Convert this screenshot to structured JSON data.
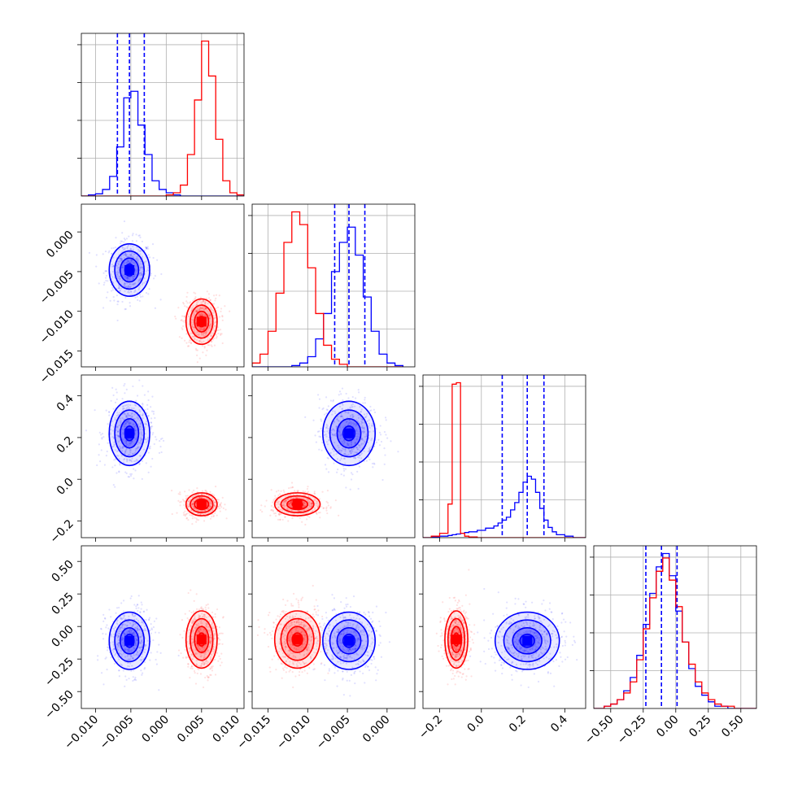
{
  "chart_data": {
    "type": "corner",
    "grid": true,
    "legend": "none",
    "colors": {
      "series_a": "#0000ff",
      "series_b": "#ff0000"
    },
    "parameters": [
      {
        "range": [
          -0.012,
          0.011
        ],
        "ticks": [
          -0.01,
          -0.005,
          0.0,
          0.005,
          0.01
        ],
        "tick_labels": [
          "−0.010",
          "−0.005",
          "0.000",
          "0.005",
          "0.010"
        ]
      },
      {
        "range": [
          -0.017,
          0.0035
        ],
        "ticks": [
          -0.015,
          -0.01,
          -0.005,
          0.0
        ],
        "tick_labels": [
          "−0.015",
          "−0.010",
          "−0.005",
          "0.000"
        ]
      },
      {
        "range": [
          -0.28,
          0.5
        ],
        "ticks": [
          -0.2,
          0.0,
          0.2,
          0.4
        ],
        "tick_labels": [
          "−0.2",
          "0.0",
          "0.2",
          "0.4"
        ]
      },
      {
        "range": [
          -0.63,
          0.62
        ],
        "ticks": [
          -0.5,
          -0.25,
          0.0,
          0.25,
          0.5
        ],
        "tick_labels": [
          "−0.50",
          "−0.25",
          "0.00",
          "0.25",
          "0.50"
        ]
      }
    ],
    "series": [
      {
        "color": "#0000ff",
        "mean": [
          -0.0052,
          -0.0048,
          0.22,
          -0.11
        ],
        "sd": [
          0.0013,
          0.0015,
          0.07,
          0.1
        ],
        "quantiles": [
          [
            -0.0069,
            -0.0052,
            -0.0031
          ],
          [
            -0.0066,
            -0.0048,
            -0.0028
          ],
          [
            0.1,
            0.22,
            0.3
          ],
          [
            -0.23,
            -0.11,
            0.01
          ]
        ]
      },
      {
        "color": "#ff0000",
        "mean": [
          0.005,
          -0.0113,
          -0.12,
          -0.1
        ],
        "sd": [
          0.001,
          0.0013,
          0.025,
          0.1
        ]
      }
    ],
    "marginal_histograms": [
      {
        "bin_edges": [
          -0.012,
          -0.011,
          -0.01,
          -0.009,
          -0.008,
          -0.007,
          -0.006,
          -0.005,
          -0.004,
          -0.003,
          -0.002,
          -0.001,
          0.0,
          0.001,
          0.002,
          0.003,
          0.004,
          0.005,
          0.006,
          0.007,
          0.008,
          0.009,
          0.01,
          0.011
        ],
        "series_a": [
          0,
          1,
          2,
          6,
          18,
          45,
          90,
          96,
          65,
          38,
          14,
          6,
          3,
          1,
          0,
          0,
          0,
          0,
          0,
          0,
          0,
          0,
          0
        ],
        "series_b": [
          0,
          0,
          0,
          0,
          0,
          0,
          0,
          0,
          0,
          0,
          0,
          0,
          1,
          3,
          10,
          38,
          88,
          142,
          110,
          52,
          14,
          3,
          1
        ]
      },
      {
        "bin_edges": [
          -0.017,
          -0.016,
          -0.015,
          -0.014,
          -0.013,
          -0.012,
          -0.011,
          -0.01,
          -0.009,
          -0.008,
          -0.007,
          -0.006,
          -0.005,
          -0.004,
          -0.003,
          -0.002,
          -0.001,
          0.0,
          0.001,
          0.002
        ],
        "series_a": [
          0,
          0,
          0,
          0,
          0,
          1,
          3,
          8,
          22,
          42,
          75,
          98,
          110,
          88,
          55,
          28,
          10,
          3,
          1
        ],
        "series_b": [
          3,
          10,
          28,
          58,
          98,
          122,
          112,
          78,
          42,
          17,
          6,
          2,
          0,
          0,
          0,
          0,
          0,
          0,
          0
        ]
      },
      {
        "bin_edges": [
          -0.28,
          -0.24,
          -0.2,
          -0.16,
          -0.14,
          -0.12,
          -0.1,
          -0.08,
          -0.06,
          -0.02,
          0.02,
          0.06,
          0.08,
          0.1,
          0.12,
          0.14,
          0.16,
          0.18,
          0.2,
          0.22,
          0.24,
          0.26,
          0.28,
          0.3,
          0.32,
          0.34,
          0.36,
          0.4,
          0.44,
          0.5
        ],
        "series_a": [
          0,
          1,
          2,
          3,
          4,
          5,
          6,
          7,
          8,
          10,
          13,
          16,
          20,
          24,
          28,
          38,
          48,
          62,
          76,
          84,
          80,
          62,
          40,
          24,
          14,
          8,
          4,
          2,
          0
        ],
        "series_b": [
          0,
          2,
          6,
          46,
          210,
          212,
          6,
          2,
          1,
          0,
          0,
          0,
          0,
          0,
          0,
          0,
          0,
          0,
          0,
          0,
          0,
          0,
          0,
          0,
          0,
          0,
          0,
          0,
          0
        ]
      },
      {
        "bin_edges": [
          -0.63,
          -0.55,
          -0.5,
          -0.45,
          -0.4,
          -0.35,
          -0.3,
          -0.25,
          -0.2,
          -0.15,
          -0.1,
          -0.05,
          0.0,
          0.05,
          0.1,
          0.15,
          0.2,
          0.25,
          0.3,
          0.35,
          0.4,
          0.45,
          0.5,
          0.62
        ],
        "series_a": [
          0,
          1,
          2,
          4,
          8,
          14,
          24,
          38,
          52,
          64,
          70,
          60,
          44,
          30,
          18,
          10,
          6,
          3,
          1,
          1,
          0,
          0,
          0
        ],
        "series_b": [
          0,
          1,
          2,
          4,
          7,
          12,
          22,
          36,
          50,
          62,
          68,
          58,
          46,
          30,
          20,
          12,
          7,
          4,
          2,
          1,
          1,
          0,
          0
        ]
      }
    ]
  }
}
